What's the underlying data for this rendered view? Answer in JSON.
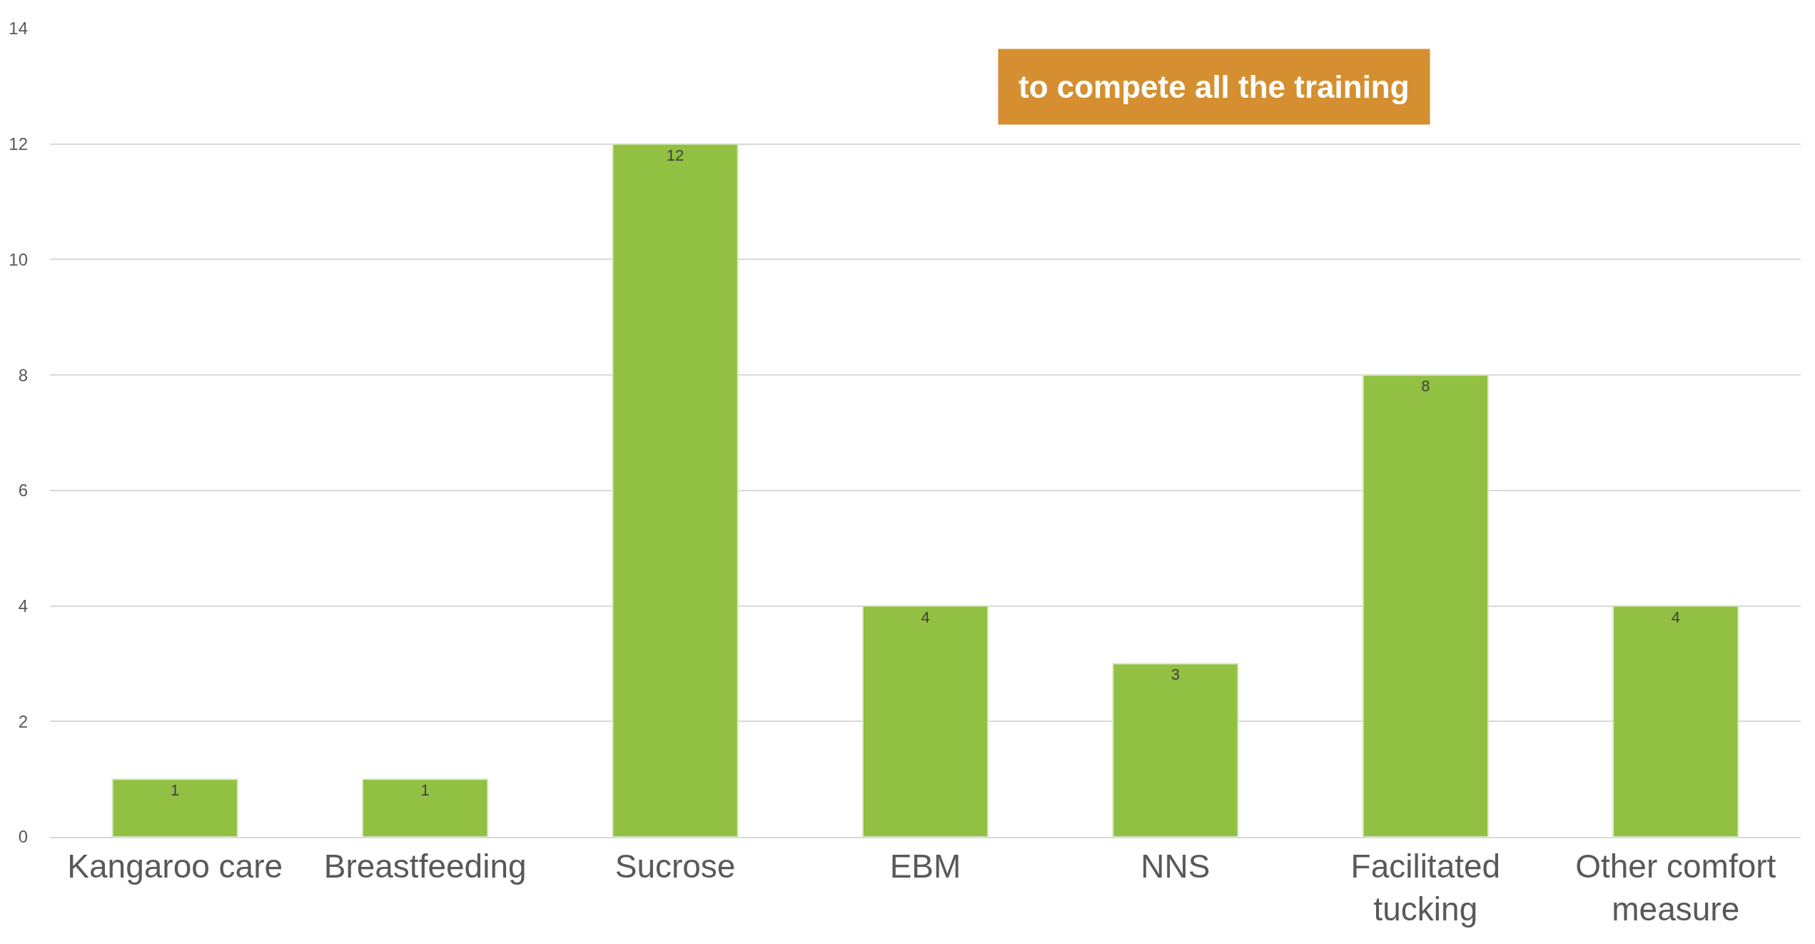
{
  "chart_data": {
    "type": "bar",
    "categories": [
      "Kangaroo care",
      "Breastfeeding",
      "Sucrose",
      "EBM",
      "NNS",
      "Facilitated tucking",
      "Other comfort measure"
    ],
    "values": [
      1,
      1,
      12,
      4,
      3,
      8,
      4
    ],
    "color": "#92c043",
    "ylim": [
      0,
      14
    ],
    "yticks": [
      0,
      2,
      4,
      6,
      8,
      10,
      12,
      14
    ],
    "grid": "y",
    "data_labels": true,
    "annotations": [
      "to compete all the training"
    ]
  }
}
